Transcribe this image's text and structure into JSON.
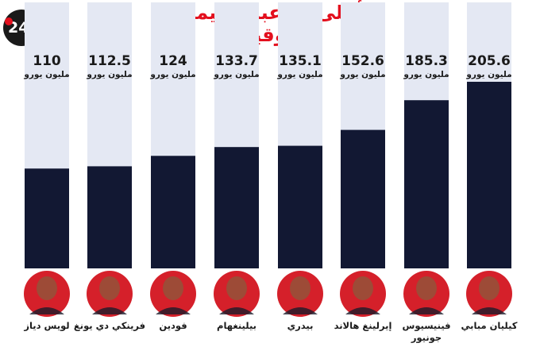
{
  "logo_text": "24:",
  "chart_data": {
    "type": "bar",
    "title": "أعلى اللاعبين قيمة سوقية",
    "unit_label": "مليون يورو",
    "categories": [
      "لويس دياز",
      "فرينكي دي يونغ",
      "فودين",
      "بيلينغهام",
      "بيدري",
      "إيرلينغ هالاند",
      "فينيسيوس جونيور",
      "كيليان مبابي"
    ],
    "values": [
      110,
      112.5,
      124,
      133.7,
      135.1,
      152.6,
      185.3,
      205.6
    ],
    "value_labels": [
      "110",
      "112.5",
      "124",
      "133.7",
      "135.1",
      "152.6",
      "185.3",
      "205.6"
    ],
    "ylim": [
      0,
      215
    ],
    "colors": {
      "bar": "#121833",
      "track": "#e4e8f3",
      "title": "#e3101e",
      "avatar": "#d5202a"
    }
  }
}
